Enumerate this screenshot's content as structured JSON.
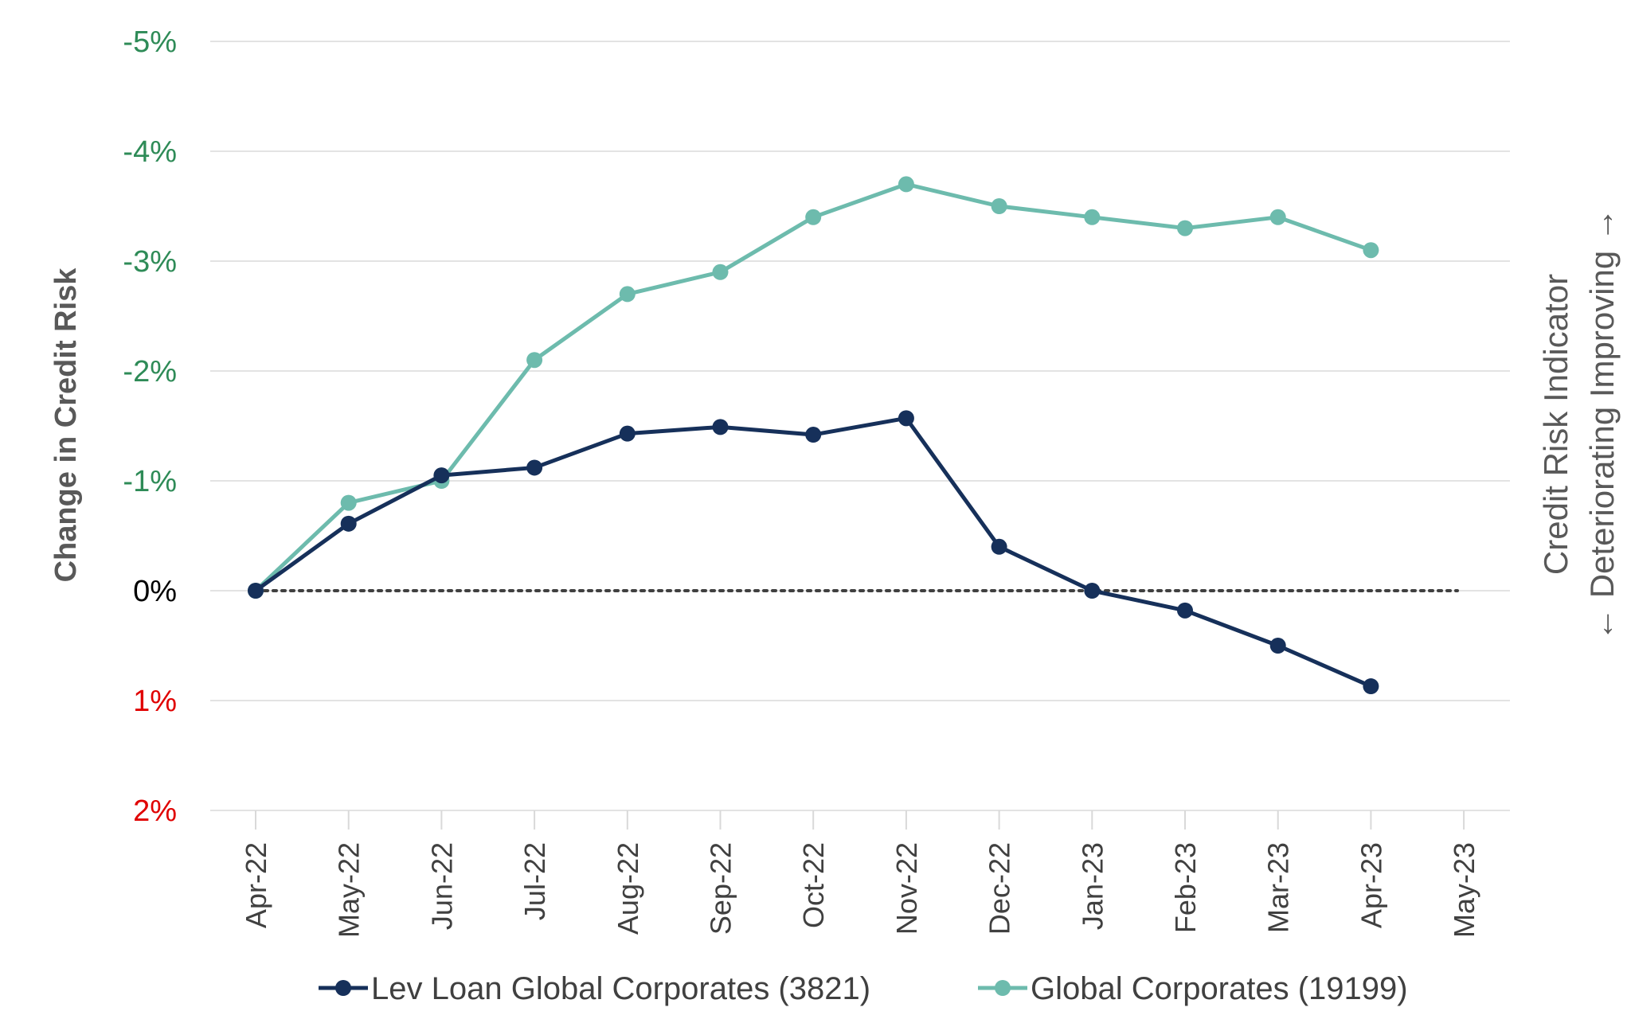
{
  "chart_data": {
    "type": "line",
    "categories": [
      "Apr-22",
      "May-22",
      "Jun-22",
      "Jul-22",
      "Aug-22",
      "Sep-22",
      "Oct-22",
      "Nov-22",
      "Dec-22",
      "Jan-23",
      "Feb-23",
      "Mar-23",
      "Apr-23",
      "May-23"
    ],
    "series": [
      {
        "name": "Lev Loan Global Corporates (3821)",
        "color": "#16305a",
        "values": [
          0.0,
          -0.61,
          -1.05,
          -1.12,
          -1.43,
          -1.49,
          -1.42,
          -1.57,
          -0.4,
          0.0,
          0.18,
          0.5,
          0.87,
          null
        ]
      },
      {
        "name": "Global Corporates (19199)",
        "color": "#6dbbad",
        "values": [
          0.0,
          -0.8,
          -1.0,
          -2.1,
          -2.7,
          -2.9,
          -3.4,
          -3.7,
          -3.5,
          -3.4,
          -3.3,
          -3.4,
          -3.1,
          null
        ]
      }
    ],
    "yticks": [
      {
        "value": -5,
        "label": "-5%",
        "color": "#2e8b57"
      },
      {
        "value": -4,
        "label": "-4%",
        "color": "#2e8b57"
      },
      {
        "value": -3,
        "label": "-3%",
        "color": "#2e8b57"
      },
      {
        "value": -2,
        "label": "-2%",
        "color": "#2e8b57"
      },
      {
        "value": -1,
        "label": "-1%",
        "color": "#2e8b57"
      },
      {
        "value": 0,
        "label": "0%",
        "color": "#000000"
      },
      {
        "value": 1,
        "label": "1%",
        "color": "#e00000"
      },
      {
        "value": 2,
        "label": "2%",
        "color": "#e00000"
      }
    ],
    "ylim": [
      -5,
      2
    ],
    "y_inverted": true,
    "ylabel": "Change in Credit Risk",
    "right_label_line1": "Credit Risk Indicator",
    "right_label_line2": "← Deteriorating Improving →",
    "zero_line": "dotted",
    "grid": true,
    "legend_position": "bottom"
  }
}
